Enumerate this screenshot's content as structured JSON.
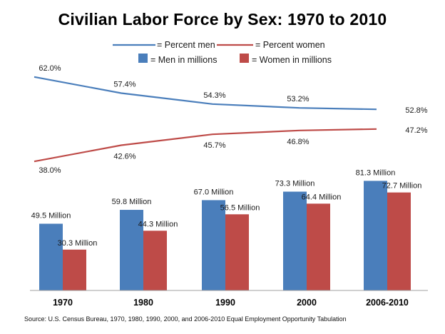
{
  "chart_data": {
    "type": "bar",
    "title": "Civilian Labor Force by Sex: 1970 to 2010",
    "categories": [
      "1970",
      "1980",
      "1990",
      "2000",
      "2006-2010"
    ],
    "series": [
      {
        "name": "Men in millions",
        "kind": "bar",
        "color": "#4a7ebb",
        "values": [
          49.5,
          59.8,
          67.0,
          73.3,
          81.3
        ],
        "labels": [
          "49.5 Million",
          "59.8 Million",
          "67.0 Million",
          "73.3 Million",
          "81.3 Million"
        ]
      },
      {
        "name": "Women in millions",
        "kind": "bar",
        "color": "#be4b48",
        "values": [
          30.3,
          44.3,
          56.5,
          64.4,
          72.7
        ],
        "labels": [
          "30.3 Million",
          "44.3 Million",
          "56.5 Million",
          "64.4 Million",
          "72.7 Million"
        ]
      },
      {
        "name": "Percent men",
        "kind": "line",
        "color": "#4a7ebb",
        "values": [
          62.0,
          57.4,
          54.3,
          53.2,
          52.8
        ],
        "labels": [
          "62.0%",
          "57.4%",
          "54.3%",
          "53.2%",
          "52.8%"
        ]
      },
      {
        "name": "Percent women",
        "kind": "line",
        "color": "#be4b48",
        "values": [
          38.0,
          42.6,
          45.7,
          46.8,
          47.2
        ],
        "labels": [
          "38.0%",
          "42.6%",
          "45.7%",
          "46.8%",
          "47.2%"
        ]
      }
    ],
    "legend": {
      "placement": "top",
      "items": [
        {
          "prefix": "= ",
          "text": "Percent men"
        },
        {
          "prefix": "= ",
          "text": "Percent women"
        },
        {
          "prefix": "= ",
          "text": "Men in millions"
        },
        {
          "prefix": "= ",
          "text": "Women in millions"
        }
      ]
    },
    "bar_ylim": [
      0,
      90
    ],
    "line_ylim": [
      35,
      65
    ],
    "grid": false
  },
  "source": "Source:   U.S. Census Bureau, 1970, 1980, 1990, 2000, and 2006-2010 Equal Employment Opportunity Tabulation"
}
